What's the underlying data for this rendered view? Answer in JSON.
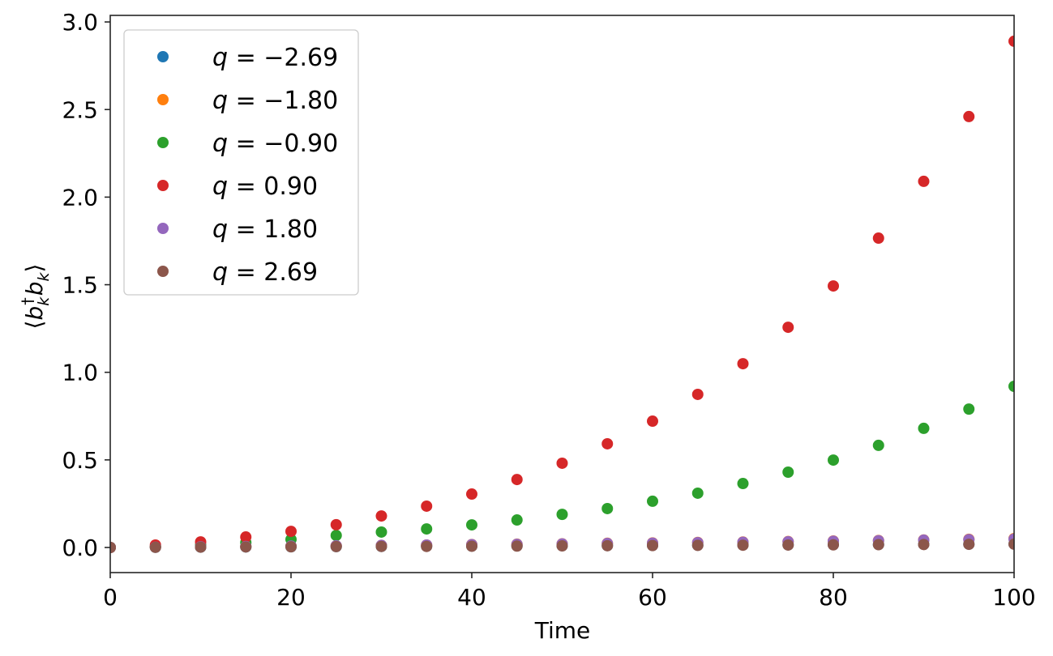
{
  "chart_data": {
    "type": "scatter",
    "title": "",
    "xlabel": "Time",
    "ylabel": "⟨b_k† b_k⟩",
    "xlim": [
      0,
      100
    ],
    "ylim": [
      -0.15,
      3.02
    ],
    "xticks": [
      0,
      20,
      40,
      60,
      80,
      100
    ],
    "xtick_labels": [
      "0",
      "20",
      "40",
      "60",
      "80",
      "100"
    ],
    "yticks": [
      0.0,
      0.5,
      1.0,
      1.5,
      2.0,
      2.5,
      3.0
    ],
    "ytick_labels": [
      "0.0",
      "0.5",
      "1.0",
      "1.5",
      "2.0",
      "2.5",
      "3.0"
    ],
    "grid": false,
    "legend_position": "upper left",
    "x": [
      0,
      5,
      10,
      15,
      20,
      25,
      30,
      35,
      40,
      45,
      50,
      55,
      60,
      65,
      70,
      75,
      80,
      85,
      90,
      95,
      100
    ],
    "series": [
      {
        "name": "q = −2.69",
        "q": "-2.69",
        "color": "#1f77b4",
        "values": [
          0,
          0.001,
          0.002,
          0.003,
          0.004,
          0.005,
          0.006,
          0.007,
          0.008,
          0.009,
          0.01,
          0.011,
          0.012,
          0.013,
          0.014,
          0.015,
          0.016,
          0.017,
          0.018,
          0.019,
          0.02
        ]
      },
      {
        "name": "q = −1.80",
        "q": "-1.80",
        "color": "#ff7f0e",
        "values": [
          0,
          0.002,
          0.004,
          0.006,
          0.008,
          0.01,
          0.012,
          0.014,
          0.017,
          0.019,
          0.021,
          0.024,
          0.026,
          0.029,
          0.031,
          0.034,
          0.037,
          0.04,
          0.043,
          0.047,
          0.051
        ]
      },
      {
        "name": "q = −0.90",
        "q": "-0.90",
        "color": "#2ca02c",
        "values": [
          0,
          0.005,
          0.014,
          0.028,
          0.046,
          0.069,
          0.088,
          0.106,
          0.129,
          0.157,
          0.189,
          0.222,
          0.264,
          0.31,
          0.365,
          0.43,
          0.499,
          0.583,
          0.68,
          0.79,
          0.92
        ]
      },
      {
        "name": "q = 0.90",
        "q": "0.90",
        "color": "#d62728",
        "values": [
          0,
          0.014,
          0.032,
          0.06,
          0.092,
          0.13,
          0.18,
          0.236,
          0.305,
          0.388,
          0.481,
          0.592,
          0.721,
          0.874,
          1.049,
          1.257,
          1.493,
          1.766,
          2.09,
          2.46,
          2.89
        ]
      },
      {
        "name": "q = 1.80",
        "q": "1.80",
        "color": "#9467bd",
        "values": [
          0,
          0.002,
          0.004,
          0.006,
          0.008,
          0.01,
          0.012,
          0.014,
          0.016,
          0.018,
          0.02,
          0.023,
          0.025,
          0.028,
          0.03,
          0.033,
          0.036,
          0.039,
          0.042,
          0.045,
          0.048
        ]
      },
      {
        "name": "q = 2.69",
        "q": "2.69",
        "color": "#8c564b",
        "values": [
          0,
          0.001,
          0.002,
          0.003,
          0.004,
          0.005,
          0.006,
          0.006,
          0.007,
          0.008,
          0.009,
          0.01,
          0.011,
          0.012,
          0.013,
          0.014,
          0.015,
          0.016,
          0.017,
          0.018,
          0.019
        ]
      }
    ]
  },
  "legend": {
    "items": [
      {
        "prefix": "q",
        "eq": " = ",
        "value": "−2.69",
        "color": "#1f77b4"
      },
      {
        "prefix": "q",
        "eq": " = ",
        "value": "−1.80",
        "color": "#ff7f0e"
      },
      {
        "prefix": "q",
        "eq": " = ",
        "value": "−0.90",
        "color": "#2ca02c"
      },
      {
        "prefix": "q",
        "eq": " = ",
        "value": "0.90",
        "color": "#d62728"
      },
      {
        "prefix": "q",
        "eq": " = ",
        "value": "1.80",
        "color": "#9467bd"
      },
      {
        "prefix": "q",
        "eq": " = ",
        "value": "2.69",
        "color": "#8c564b"
      }
    ]
  },
  "axes": {
    "xlabel": "Time",
    "ylabel_parts": {
      "open": "⟨",
      "b1": "b",
      "sub1": "k",
      "sup": "†",
      "b2": "b",
      "sub2": "k",
      "close": "⟩"
    }
  }
}
